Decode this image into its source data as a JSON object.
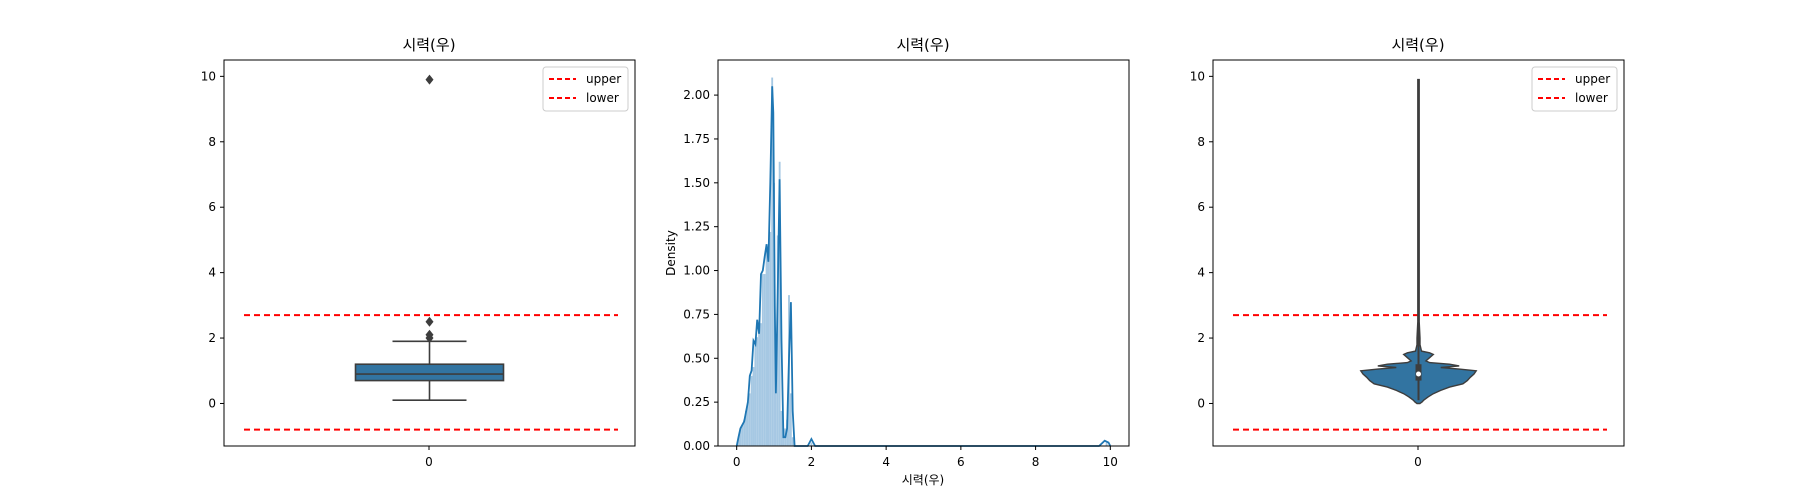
{
  "chart_data": [
    {
      "type": "box",
      "title": "시력(우)",
      "xlabel": "",
      "ylabel": "",
      "categories": [
        "0"
      ],
      "ylim": [
        -1.3,
        10.5
      ],
      "yticks": [
        0,
        2,
        4,
        6,
        8,
        10
      ],
      "box": {
        "whisker_low": 0.1,
        "q1": 0.7,
        "median": 0.9,
        "q3": 1.2,
        "whisker_high": 1.9,
        "outliers": [
          2.0,
          2.1,
          2.5,
          9.9
        ]
      },
      "color": "#3274a1",
      "ref_lines": [
        {
          "name": "upper",
          "y": 2.7,
          "color": "#ff0000"
        },
        {
          "name": "lower",
          "y": -0.8,
          "color": "#ff0000"
        }
      ],
      "legend": {
        "position": "upper right",
        "entries": [
          "upper",
          "lower"
        ]
      }
    },
    {
      "type": "histogram+kde",
      "title": "시력(우)",
      "xlabel": "시력(우)",
      "ylabel": "Density",
      "xlim": [
        -0.5,
        10.5
      ],
      "ylim": [
        0,
        2.2
      ],
      "xticks": [
        0,
        2,
        4,
        6,
        8,
        10
      ],
      "yticks": [
        "0.00",
        "0.25",
        "0.50",
        "0.75",
        "1.00",
        "1.25",
        "1.50",
        "1.75",
        "2.00"
      ],
      "hist_color": "#a6c8e3",
      "kde_color": "#1f77b4",
      "histogram": [
        {
          "x": 0.05,
          "h": 0.05
        },
        {
          "x": 0.1,
          "h": 0.1
        },
        {
          "x": 0.15,
          "h": 0.12
        },
        {
          "x": 0.2,
          "h": 0.15
        },
        {
          "x": 0.25,
          "h": 0.2
        },
        {
          "x": 0.3,
          "h": 0.25
        },
        {
          "x": 0.35,
          "h": 0.3
        },
        {
          "x": 0.4,
          "h": 0.4
        },
        {
          "x": 0.45,
          "h": 0.45
        },
        {
          "x": 0.5,
          "h": 0.6
        },
        {
          "x": 0.55,
          "h": 0.62
        },
        {
          "x": 0.6,
          "h": 0.65
        },
        {
          "x": 0.65,
          "h": 0.7
        },
        {
          "x": 0.7,
          "h": 0.98
        },
        {
          "x": 0.75,
          "h": 0.98
        },
        {
          "x": 0.8,
          "h": 1.15
        },
        {
          "x": 0.85,
          "h": 1.05
        },
        {
          "x": 0.9,
          "h": 1.22
        },
        {
          "x": 0.95,
          "h": 2.1
        },
        {
          "x": 1.0,
          "h": 1.5
        },
        {
          "x": 1.05,
          "h": 0.3
        },
        {
          "x": 1.1,
          "h": 1.2
        },
        {
          "x": 1.15,
          "h": 1.62
        },
        {
          "x": 1.2,
          "h": 0.2
        },
        {
          "x": 1.25,
          "h": 0.1
        },
        {
          "x": 1.3,
          "h": 0.1
        },
        {
          "x": 1.35,
          "h": 0.15
        },
        {
          "x": 1.4,
          "h": 0.86
        },
        {
          "x": 1.45,
          "h": 0.3
        },
        {
          "x": 1.5,
          "h": 0.05
        },
        {
          "x": 2.0,
          "h": 0.02
        },
        {
          "x": 9.9,
          "h": 0.02
        }
      ],
      "kde": [
        [
          0.0,
          0.0
        ],
        [
          0.05,
          0.05
        ],
        [
          0.1,
          0.1
        ],
        [
          0.2,
          0.14
        ],
        [
          0.3,
          0.25
        ],
        [
          0.35,
          0.4
        ],
        [
          0.4,
          0.43
        ],
        [
          0.45,
          0.6
        ],
        [
          0.5,
          0.58
        ],
        [
          0.55,
          0.72
        ],
        [
          0.6,
          0.64
        ],
        [
          0.65,
          0.98
        ],
        [
          0.7,
          1.0
        ],
        [
          0.75,
          1.08
        ],
        [
          0.8,
          1.15
        ],
        [
          0.85,
          1.05
        ],
        [
          0.9,
          1.5
        ],
        [
          0.95,
          2.05
        ],
        [
          0.98,
          1.9
        ],
        [
          1.02,
          0.8
        ],
        [
          1.05,
          0.3
        ],
        [
          1.1,
          0.9
        ],
        [
          1.15,
          1.52
        ],
        [
          1.2,
          0.6
        ],
        [
          1.25,
          0.05
        ],
        [
          1.3,
          0.05
        ],
        [
          1.35,
          0.1
        ],
        [
          1.4,
          0.5
        ],
        [
          1.45,
          0.82
        ],
        [
          1.5,
          0.2
        ],
        [
          1.55,
          0.0
        ],
        [
          1.9,
          0.0
        ],
        [
          2.0,
          0.04
        ],
        [
          2.1,
          0.0
        ],
        [
          9.7,
          0.0
        ],
        [
          9.85,
          0.03
        ],
        [
          9.95,
          0.02
        ],
        [
          10.0,
          0.0
        ]
      ]
    },
    {
      "type": "violin",
      "title": "시력(우)",
      "xlabel": "",
      "ylabel": "",
      "categories": [
        "0"
      ],
      "ylim": [
        -1.3,
        10.5
      ],
      "yticks": [
        0,
        2,
        4,
        6,
        8,
        10
      ],
      "color": "#3274a1",
      "whisker_low": 0.1,
      "q1": 0.7,
      "median": 0.9,
      "q3": 1.2,
      "whisker_high": 9.9,
      "profile": [
        [
          0.0,
          0.02
        ],
        [
          0.05,
          0.05
        ],
        [
          0.1,
          0.07
        ],
        [
          0.2,
          0.13
        ],
        [
          0.3,
          0.2
        ],
        [
          0.4,
          0.3
        ],
        [
          0.5,
          0.42
        ],
        [
          0.6,
          0.6
        ],
        [
          0.7,
          0.66
        ],
        [
          0.8,
          0.7
        ],
        [
          0.9,
          0.75
        ],
        [
          1.0,
          0.78
        ],
        [
          1.05,
          0.55
        ],
        [
          1.1,
          0.3
        ],
        [
          1.15,
          0.55
        ],
        [
          1.2,
          0.42
        ],
        [
          1.25,
          0.15
        ],
        [
          1.3,
          0.1
        ],
        [
          1.4,
          0.15
        ],
        [
          1.5,
          0.2
        ],
        [
          1.55,
          0.15
        ],
        [
          1.6,
          0.04
        ],
        [
          1.8,
          0.02
        ],
        [
          2.0,
          0.02
        ],
        [
          2.5,
          0.01
        ],
        [
          9.9,
          0.01
        ]
      ],
      "ref_lines": [
        {
          "name": "upper",
          "y": 2.7,
          "color": "#ff0000"
        },
        {
          "name": "lower",
          "y": -0.8,
          "color": "#ff0000"
        }
      ],
      "legend": {
        "position": "upper right",
        "entries": [
          "upper",
          "lower"
        ]
      }
    }
  ]
}
